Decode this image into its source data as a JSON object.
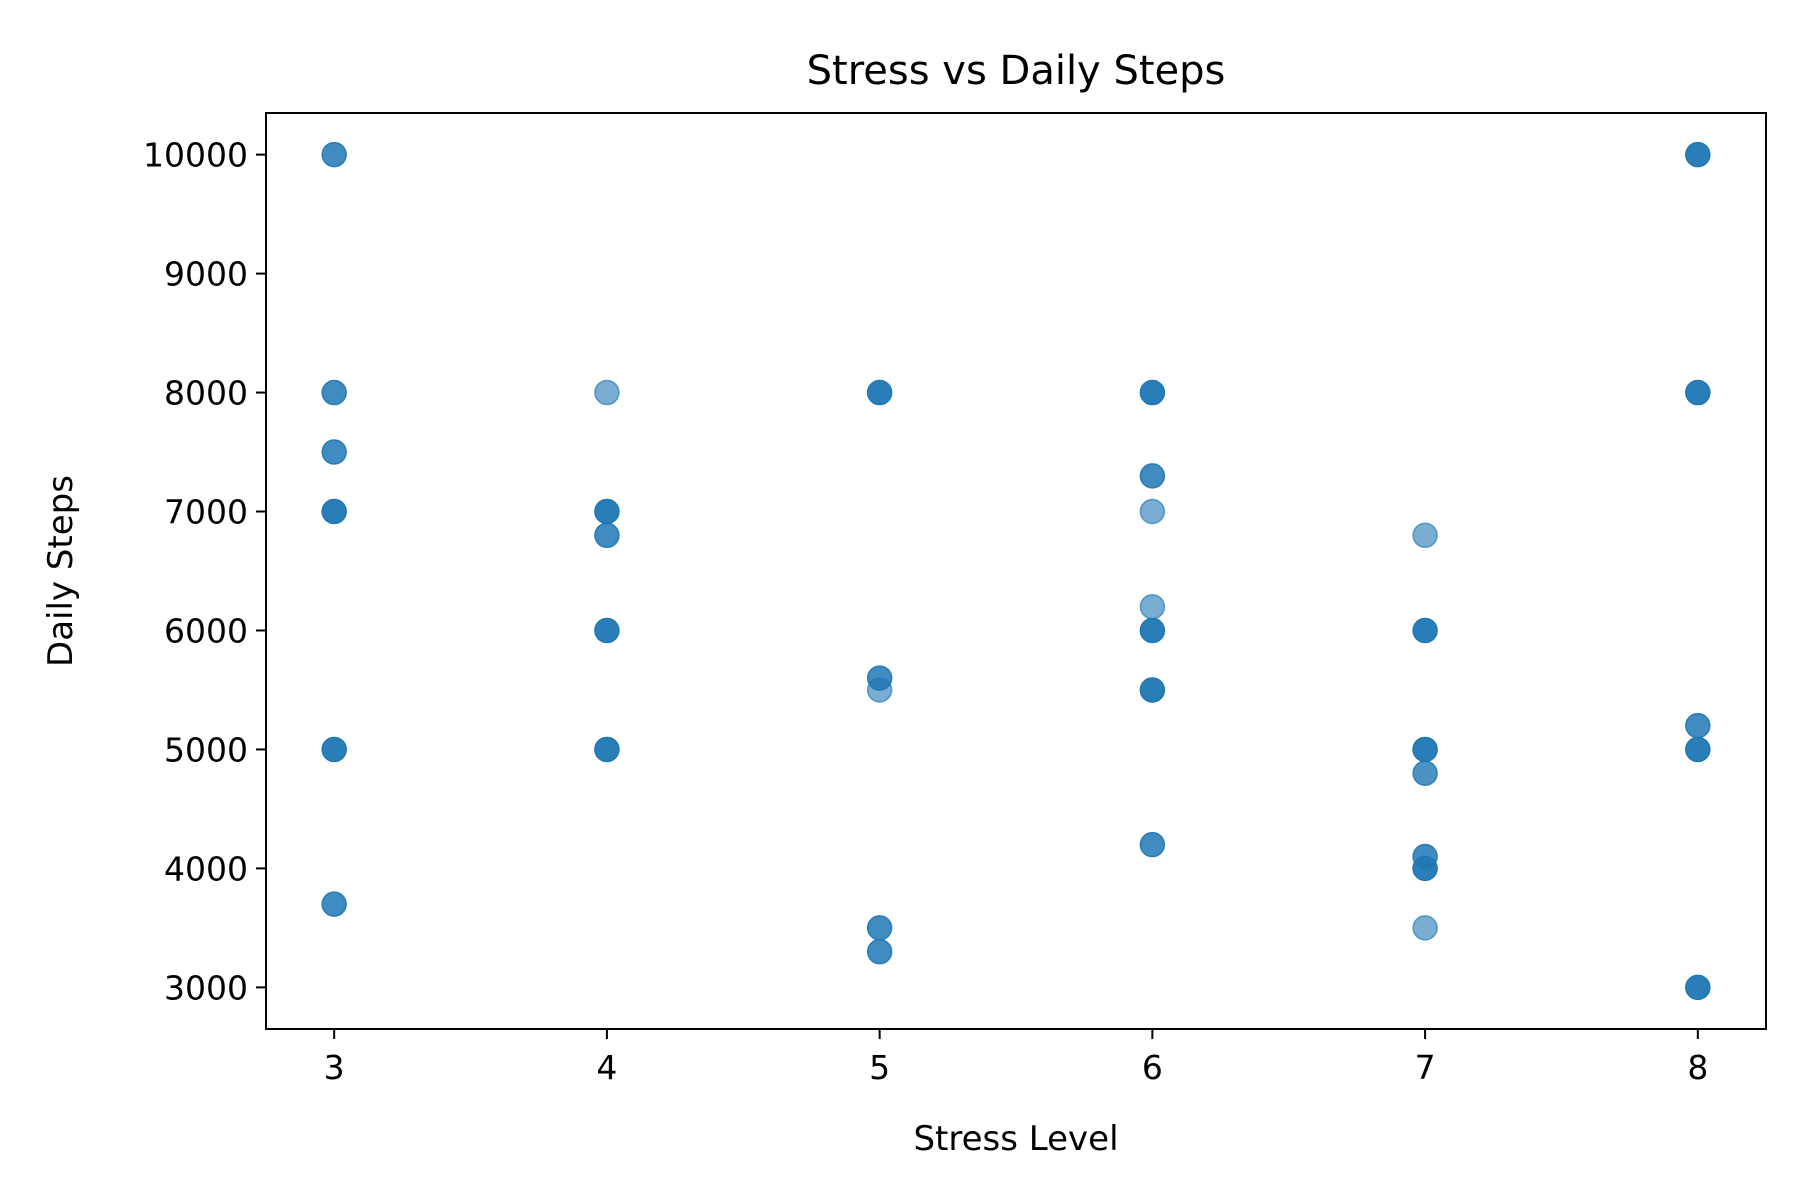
{
  "chart_data": {
    "type": "scatter",
    "title": "Stress vs Daily Steps",
    "xlabel": "Stress Level",
    "ylabel": "Daily Steps",
    "xlim": [
      2.75,
      8.25
    ],
    "ylim": [
      2650,
      10350
    ],
    "xticks": [
      3,
      4,
      5,
      6,
      7,
      8
    ],
    "yticks": [
      3000,
      4000,
      5000,
      6000,
      7000,
      8000,
      9000,
      10000
    ],
    "grid": false,
    "legend": false,
    "marker_color": "#1f77b4",
    "points": [
      {
        "x": 3,
        "y": 10000,
        "opacity": 0.85
      },
      {
        "x": 3,
        "y": 8000,
        "opacity": 0.85
      },
      {
        "x": 3,
        "y": 7500,
        "opacity": 0.85
      },
      {
        "x": 3,
        "y": 7000,
        "opacity": 0.95
      },
      {
        "x": 3,
        "y": 5000,
        "opacity": 0.95
      },
      {
        "x": 3,
        "y": 3700,
        "opacity": 0.85
      },
      {
        "x": 4,
        "y": 8000,
        "opacity": 0.6
      },
      {
        "x": 4,
        "y": 7000,
        "opacity": 0.95
      },
      {
        "x": 4,
        "y": 6800,
        "opacity": 0.85
      },
      {
        "x": 4,
        "y": 6000,
        "opacity": 0.95
      },
      {
        "x": 4,
        "y": 5000,
        "opacity": 0.95
      },
      {
        "x": 5,
        "y": 8000,
        "opacity": 0.95
      },
      {
        "x": 5,
        "y": 5600,
        "opacity": 0.85
      },
      {
        "x": 5,
        "y": 5500,
        "opacity": 0.6
      },
      {
        "x": 5,
        "y": 3500,
        "opacity": 0.85
      },
      {
        "x": 5,
        "y": 3300,
        "opacity": 0.85
      },
      {
        "x": 6,
        "y": 8000,
        "opacity": 0.95
      },
      {
        "x": 6,
        "y": 7300,
        "opacity": 0.85
      },
      {
        "x": 6,
        "y": 7000,
        "opacity": 0.6
      },
      {
        "x": 6,
        "y": 6200,
        "opacity": 0.6
      },
      {
        "x": 6,
        "y": 6000,
        "opacity": 0.95
      },
      {
        "x": 6,
        "y": 5500,
        "opacity": 0.95
      },
      {
        "x": 6,
        "y": 4200,
        "opacity": 0.85
      },
      {
        "x": 7,
        "y": 6800,
        "opacity": 0.6
      },
      {
        "x": 7,
        "y": 6000,
        "opacity": 0.95
      },
      {
        "x": 7,
        "y": 5000,
        "opacity": 0.95
      },
      {
        "x": 7,
        "y": 4800,
        "opacity": 0.8
      },
      {
        "x": 7,
        "y": 4100,
        "opacity": 0.85
      },
      {
        "x": 7,
        "y": 4000,
        "opacity": 0.95
      },
      {
        "x": 7,
        "y": 3500,
        "opacity": 0.6
      },
      {
        "x": 8,
        "y": 10000,
        "opacity": 0.95
      },
      {
        "x": 8,
        "y": 8000,
        "opacity": 0.95
      },
      {
        "x": 8,
        "y": 5200,
        "opacity": 0.85
      },
      {
        "x": 8,
        "y": 5000,
        "opacity": 0.95
      },
      {
        "x": 8,
        "y": 3000,
        "opacity": 0.95
      }
    ]
  }
}
